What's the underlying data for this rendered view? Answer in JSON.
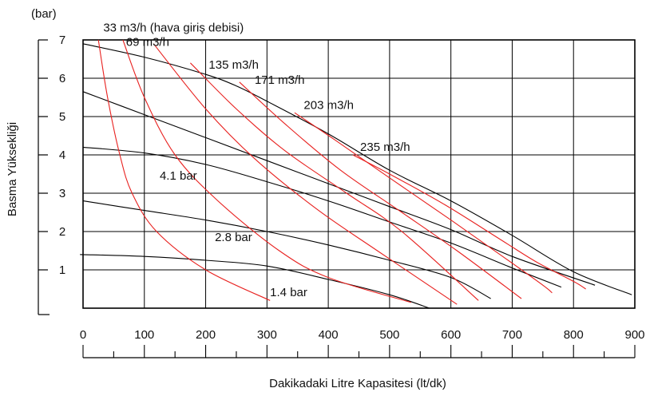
{
  "chart_data": {
    "type": "line",
    "y_unit": "(bar)",
    "ylabel": "Basma Yüksekliği",
    "xlabel": "Dakikadaki Litre Kapasitesi (lt/dk)",
    "xlim": [
      0,
      900
    ],
    "ylim": [
      0,
      7
    ],
    "x_ticks": [
      "0",
      "100",
      "200",
      "300",
      "400",
      "500",
      "600",
      "700",
      "800",
      "900"
    ],
    "y_ticks": [
      "1",
      "2",
      "3",
      "4",
      "5",
      "6",
      "7"
    ],
    "grid": true,
    "pressure_curves": [
      {
        "label": "",
        "points": [
          [
            0,
            6.9
          ],
          [
            100,
            6.55
          ],
          [
            200,
            6.1
          ],
          [
            250,
            5.8
          ],
          [
            300,
            5.4
          ],
          [
            400,
            4.55
          ],
          [
            500,
            3.6
          ],
          [
            600,
            2.8
          ],
          [
            700,
            1.9
          ],
          [
            800,
            0.95
          ],
          [
            895,
            0.35
          ]
        ]
      },
      {
        "label": "",
        "points": [
          [
            0,
            5.65
          ],
          [
            100,
            5.05
          ],
          [
            200,
            4.45
          ],
          [
            300,
            3.85
          ],
          [
            400,
            3.25
          ],
          [
            500,
            2.65
          ],
          [
            600,
            2.05
          ],
          [
            700,
            1.35
          ],
          [
            835,
            0.6
          ]
        ]
      },
      {
        "label": "4.1 bar",
        "points": [
          [
            0,
            4.2
          ],
          [
            100,
            4.05
          ],
          [
            200,
            3.75
          ],
          [
            300,
            3.3
          ],
          [
            400,
            2.8
          ],
          [
            500,
            2.25
          ],
          [
            600,
            1.7
          ],
          [
            700,
            1.05
          ],
          [
            780,
            0.55
          ]
        ]
      },
      {
        "label": "2.8 bar",
        "points": [
          [
            0,
            2.8
          ],
          [
            100,
            2.55
          ],
          [
            200,
            2.3
          ],
          [
            300,
            2.0
          ],
          [
            400,
            1.65
          ],
          [
            500,
            1.25
          ],
          [
            600,
            0.8
          ],
          [
            665,
            0.25
          ]
        ]
      },
      {
        "label": "1.4 bar",
        "points": [
          [
            -5,
            1.4
          ],
          [
            100,
            1.35
          ],
          [
            200,
            1.25
          ],
          [
            300,
            1.1
          ],
          [
            400,
            0.75
          ],
          [
            500,
            0.35
          ],
          [
            565,
            0.0
          ]
        ]
      }
    ],
    "air_flow_curves": [
      {
        "label": "33 m3/h (hava giriş debisi)",
        "points": [
          [
            25,
            7.0
          ],
          [
            40,
            5.5
          ],
          [
            60,
            4.0
          ],
          [
            80,
            3.0
          ],
          [
            120,
            2.0
          ],
          [
            200,
            1.0
          ],
          [
            305,
            0.2
          ]
        ]
      },
      {
        "label": "69 m3/h",
        "points": [
          [
            65,
            7.0
          ],
          [
            100,
            5.5
          ],
          [
            150,
            4.0
          ],
          [
            220,
            2.8
          ],
          [
            320,
            1.5
          ],
          [
            400,
            0.8
          ],
          [
            535,
            0.15
          ]
        ]
      },
      {
        "label": "135 m3/h",
        "points": [
          [
            115,
            6.9
          ],
          [
            200,
            5.2
          ],
          [
            280,
            3.9
          ],
          [
            380,
            2.6
          ],
          [
            480,
            1.5
          ],
          [
            610,
            0.1
          ]
        ]
      },
      {
        "label": "",
        "points": [
          [
            175,
            6.4
          ],
          [
            250,
            5.2
          ],
          [
            330,
            4.1
          ],
          [
            430,
            3.0
          ],
          [
            520,
            2.0
          ],
          [
            645,
            0.2
          ]
        ]
      },
      {
        "label": "171 m3/h",
        "points": [
          [
            255,
            5.9
          ],
          [
            330,
            4.8
          ],
          [
            420,
            3.6
          ],
          [
            520,
            2.5
          ],
          [
            610,
            1.5
          ],
          [
            715,
            0.25
          ]
        ]
      },
      {
        "label": "203 m3/h",
        "points": [
          [
            345,
            5.1
          ],
          [
            410,
            4.4
          ],
          [
            500,
            3.4
          ],
          [
            600,
            2.3
          ],
          [
            680,
            1.4
          ],
          [
            750,
            0.6
          ],
          [
            765,
            0.4
          ]
        ]
      },
      {
        "label": "235 m3/h",
        "points": [
          [
            440,
            4.0
          ],
          [
            500,
            3.5
          ],
          [
            590,
            2.7
          ],
          [
            680,
            1.8
          ],
          [
            740,
            1.2
          ],
          [
            800,
            0.7
          ],
          [
            820,
            0.5
          ]
        ]
      }
    ],
    "colors": {
      "pressure": "#000000",
      "air_flow": "#e8211f",
      "grid": "#000000"
    }
  }
}
